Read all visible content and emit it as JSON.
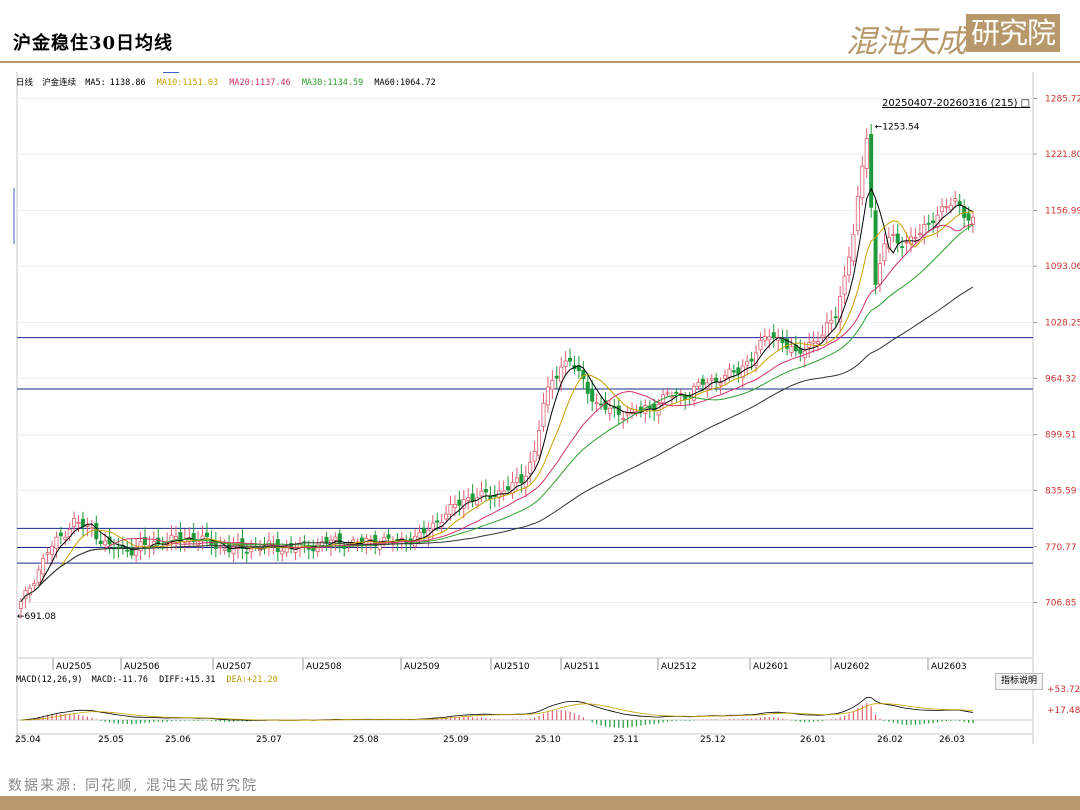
{
  "header": {
    "title": "沪金稳住30日均线",
    "logo_main": "混沌天成",
    "logo_box": "研究院"
  },
  "legend": {
    "period": "日线",
    "symbol": "沪金连续",
    "ma5_label": "MA5:",
    "ma5": "1138.86",
    "ma10_label": "MA10:",
    "ma10": "1151.03",
    "ma20_label": "MA20:",
    "ma20": "1137.46",
    "ma30_label": "MA30:",
    "ma30": "1134.59",
    "ma60_label": "MA60:",
    "ma60": "1064.72"
  },
  "macd_legend": {
    "name": "MACD(12,26,9)",
    "macd_label": "MACD:",
    "macd": "-11.76",
    "diff_label": "DIFF:",
    "diff": "+15.31",
    "dea_label": "DEA:",
    "dea": "+21.20"
  },
  "range_label": "20250407-20260316 (215)",
  "help_button": "指标说明",
  "source": "数据来源: 同花顺, 混沌天成研究院",
  "colors": {
    "brand": "#b7986a",
    "up": "#e06070",
    "down": "#1f9a3a",
    "ma5": "#000000",
    "ma10": "#c8a000",
    "ma20": "#d0306a",
    "ma30": "#2ca02c",
    "ma60": "#333333",
    "hline": "#1a2a8a"
  },
  "chart_data": {
    "type": "candlestick",
    "y_ticks": [
      "1285.72",
      "1221.80",
      "1156.99",
      "1093.06",
      "1028.25",
      "964.32",
      "899.51",
      "835.59",
      "770.77",
      "706.85"
    ],
    "ylim": [
      650,
      1300
    ],
    "contract_labels": [
      "AU2505",
      "AU2506",
      "AU2507",
      "AU2508",
      "AU2509",
      "AU2510",
      "AU2511",
      "AU2512",
      "AU2601",
      "AU2602",
      "AU2603"
    ],
    "date_labels": [
      "25.04",
      "25.05",
      "25.06",
      "25.07",
      "25.08",
      "25.09",
      "25.10",
      "25.11",
      "25.12",
      "26.01",
      "26.02",
      "26.03"
    ],
    "annotations": [
      {
        "label": "1253.54",
        "value": 1253.54
      },
      {
        "label": "691.08",
        "value": 691.08
      }
    ],
    "horizontal_lines": [
      1011,
      952,
      792,
      770,
      752
    ],
    "close_anchors": [
      [
        0,
        705
      ],
      [
        6,
        765
      ],
      [
        12,
        800
      ],
      [
        16,
        790
      ],
      [
        20,
        770
      ],
      [
        25,
        768
      ],
      [
        30,
        775
      ],
      [
        35,
        779
      ],
      [
        40,
        781
      ],
      [
        45,
        770
      ],
      [
        50,
        768
      ],
      [
        55,
        772
      ],
      [
        60,
        769
      ],
      [
        65,
        771
      ],
      [
        70,
        777
      ],
      [
        75,
        775
      ],
      [
        80,
        778
      ],
      [
        85,
        777
      ],
      [
        90,
        782
      ],
      [
        95,
        805
      ],
      [
        100,
        825
      ],
      [
        103,
        830
      ],
      [
        106,
        828
      ],
      [
        110,
        840
      ],
      [
        113,
        845
      ],
      [
        116,
        880
      ],
      [
        118,
        935
      ],
      [
        120,
        960
      ],
      [
        122,
        980
      ],
      [
        124,
        985
      ],
      [
        126,
        968
      ],
      [
        130,
        935
      ],
      [
        134,
        925
      ],
      [
        138,
        925
      ],
      [
        142,
        930
      ],
      [
        146,
        945
      ],
      [
        150,
        945
      ],
      [
        154,
        958
      ],
      [
        158,
        965
      ],
      [
        162,
        972
      ],
      [
        166,
        995
      ],
      [
        169,
        1015
      ],
      [
        172,
        1008
      ],
      [
        175,
        990
      ],
      [
        178,
        1005
      ],
      [
        181,
        1012
      ],
      [
        184,
        1040
      ],
      [
        186,
        1080
      ],
      [
        188,
        1130
      ],
      [
        190,
        1205
      ],
      [
        191,
        1245
      ],
      [
        192,
        1165
      ],
      [
        193,
        1070
      ],
      [
        195,
        1120
      ],
      [
        197,
        1125
      ],
      [
        200,
        1120
      ],
      [
        203,
        1130
      ],
      [
        206,
        1150
      ],
      [
        209,
        1160
      ],
      [
        211,
        1168
      ],
      [
        213,
        1155
      ],
      [
        215,
        1145
      ]
    ],
    "macd_ticks": [
      "+53.72",
      "+17.48"
    ]
  }
}
